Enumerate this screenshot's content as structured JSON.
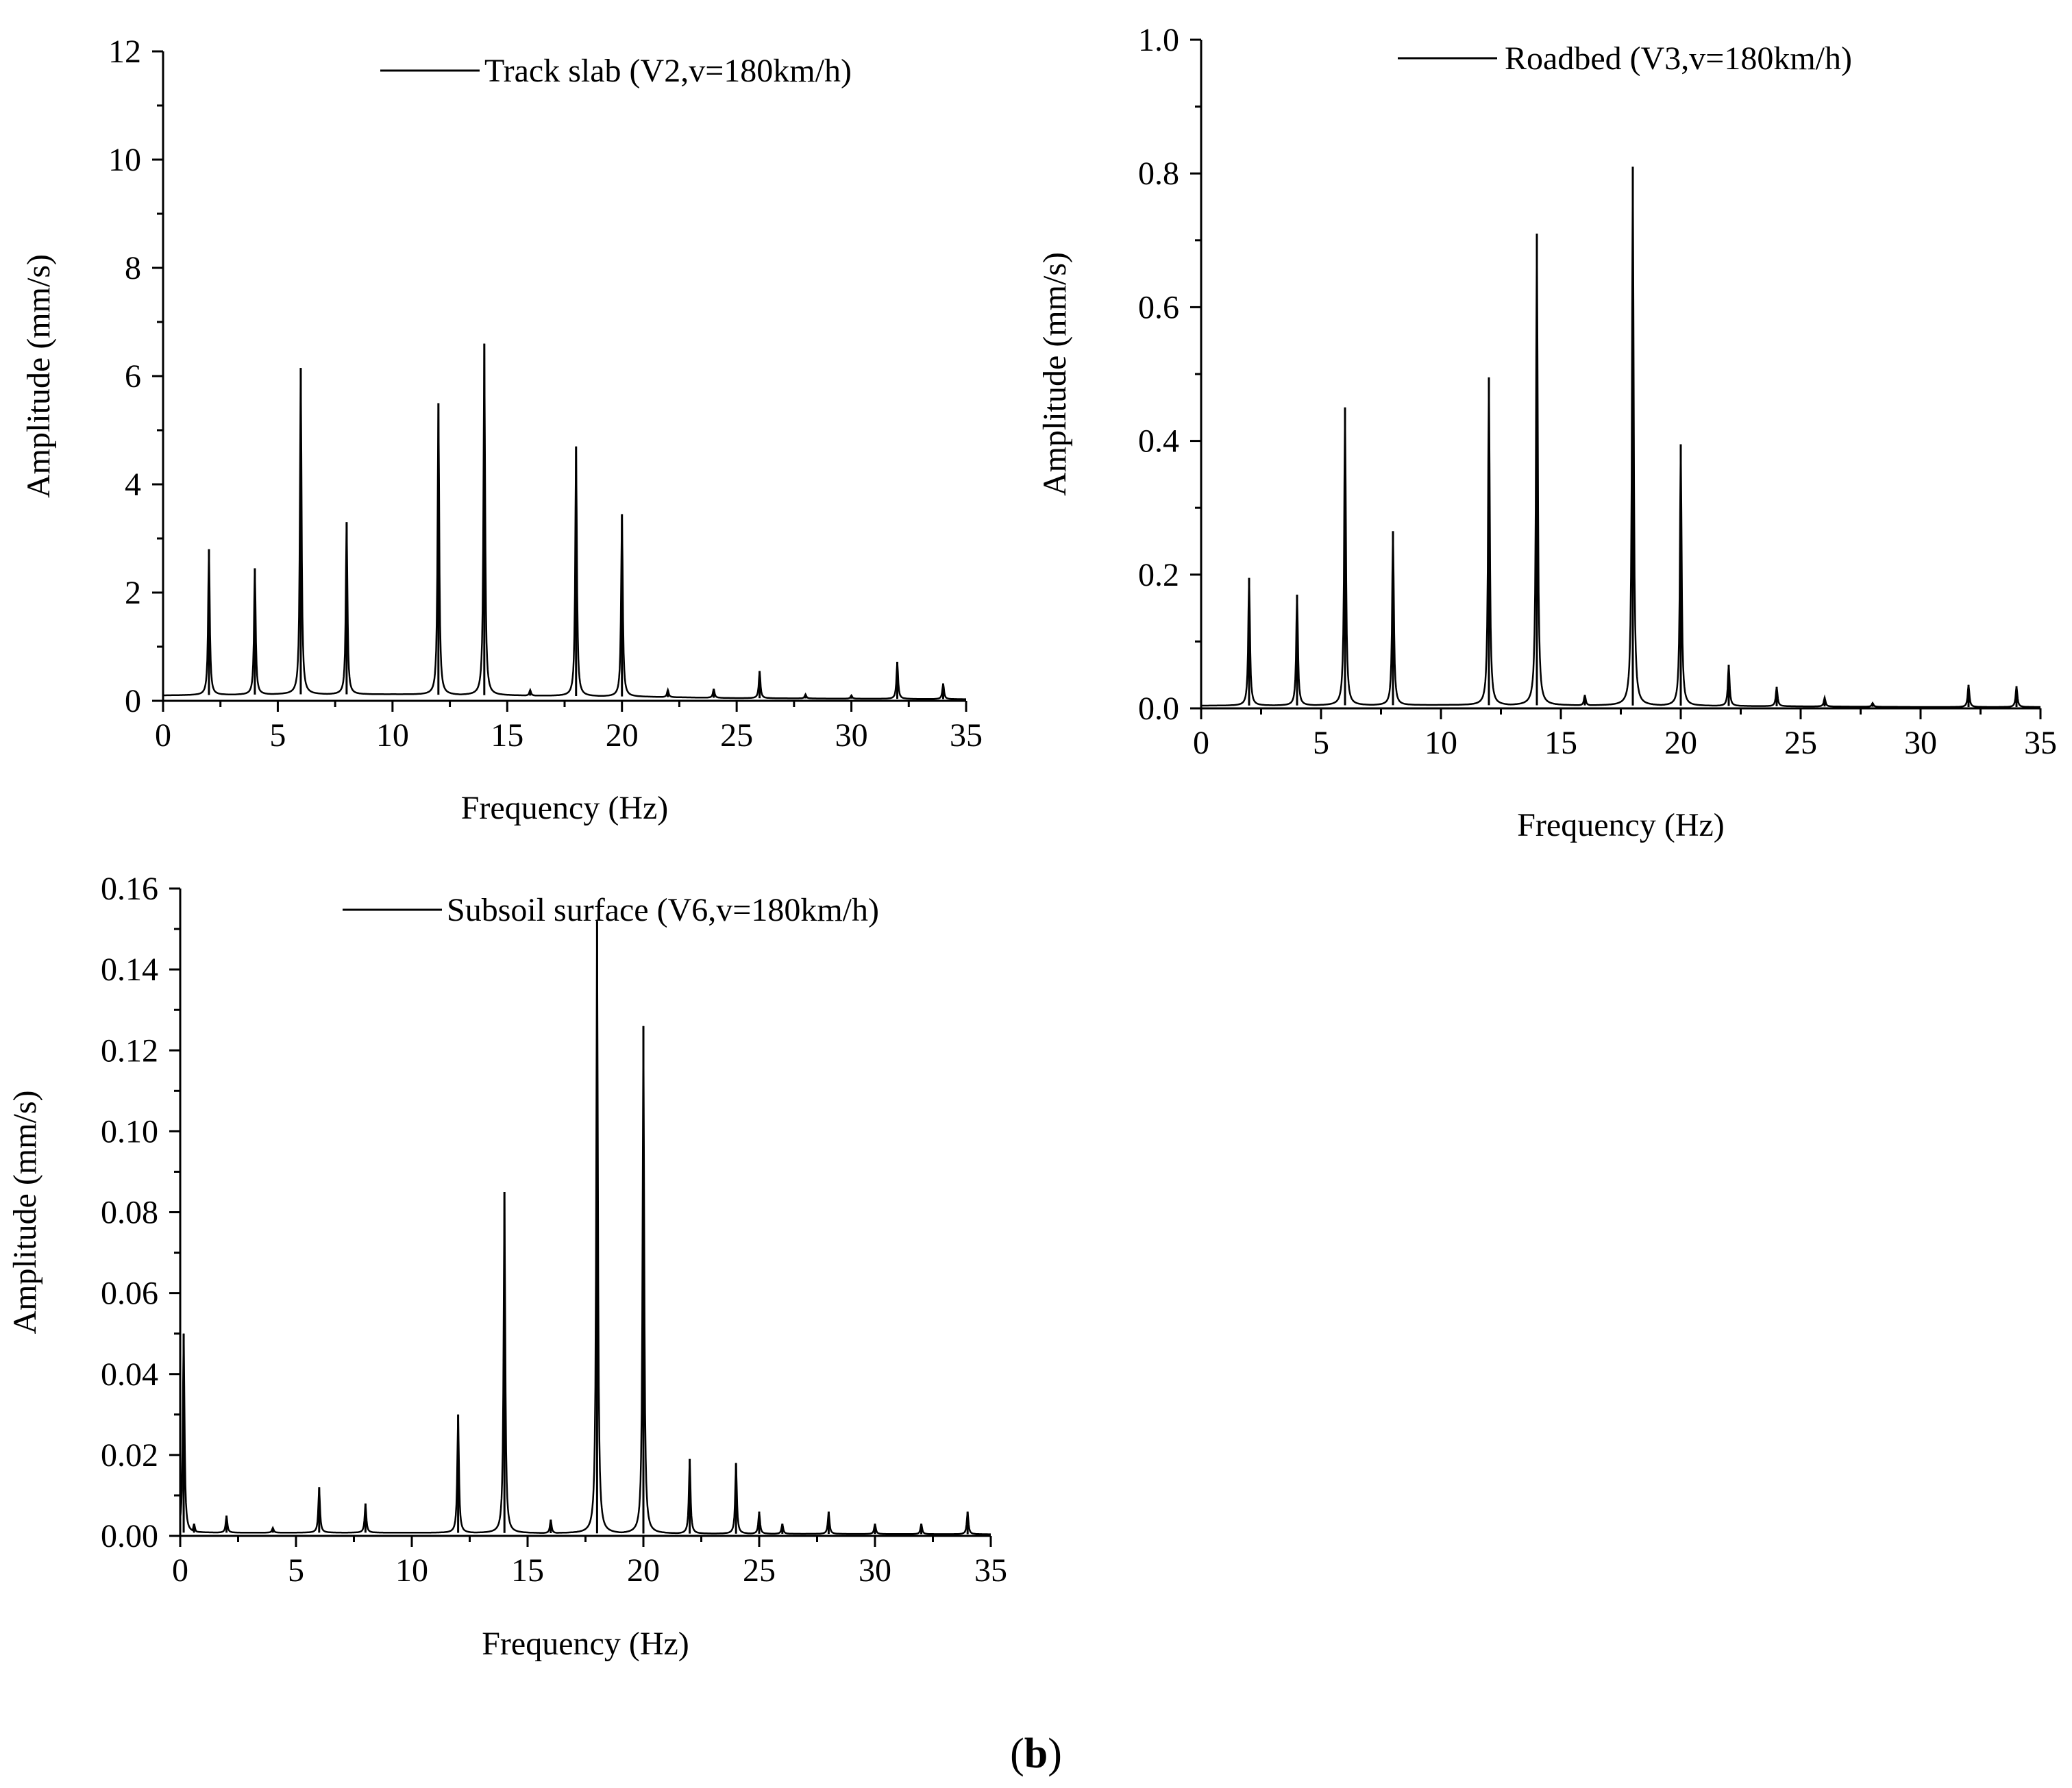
{
  "caption": {
    "open": "(",
    "label": "b",
    "close": ")"
  },
  "chart_data": [
    {
      "type": "line",
      "id": "track-slab",
      "xlabel": "Frequency (Hz)",
      "ylabel": "Amplitude (mm/s)",
      "xlim": [
        0,
        35
      ],
      "ylim": [
        0,
        12
      ],
      "xticks": [
        0,
        5,
        10,
        15,
        20,
        25,
        30,
        35
      ],
      "yticks": [
        0,
        2,
        4,
        6,
        8,
        10,
        12
      ],
      "ytick_labels": [
        "0",
        "2",
        "4",
        "6",
        "8",
        "10",
        "12"
      ],
      "grid": false,
      "legend_position": "top-right",
      "series": [
        {
          "name": "Track slab (V2,v=180km/h)",
          "color": "#000000",
          "baseline": [
            [
              0,
              0.1
            ],
            [
              5,
              0.12
            ],
            [
              10,
              0.12
            ],
            [
              15,
              0.1
            ],
            [
              20,
              0.08
            ],
            [
              25,
              0.05
            ],
            [
              30,
              0.04
            ],
            [
              35,
              0.03
            ]
          ],
          "peaks": [
            {
              "x": 2,
              "y": 2.8
            },
            {
              "x": 4,
              "y": 2.45
            },
            {
              "x": 6,
              "y": 6.15
            },
            {
              "x": 8,
              "y": 3.3
            },
            {
              "x": 12,
              "y": 5.5
            },
            {
              "x": 14,
              "y": 6.6
            },
            {
              "x": 16,
              "y": 0.2
            },
            {
              "x": 18,
              "y": 4.7
            },
            {
              "x": 20,
              "y": 3.45
            },
            {
              "x": 22,
              "y": 0.2
            },
            {
              "x": 24,
              "y": 0.22
            },
            {
              "x": 26,
              "y": 0.55
            },
            {
              "x": 28,
              "y": 0.12
            },
            {
              "x": 30,
              "y": 0.1
            },
            {
              "x": 32,
              "y": 0.72
            },
            {
              "x": 34,
              "y": 0.32
            }
          ]
        }
      ]
    },
    {
      "type": "line",
      "id": "roadbed",
      "xlabel": "Frequency (Hz)",
      "ylabel": "Amplitude (mm/s)",
      "xlim": [
        0,
        35
      ],
      "ylim": [
        0,
        1.0
      ],
      "xticks": [
        0,
        5,
        10,
        15,
        20,
        25,
        30,
        35
      ],
      "yticks": [
        0,
        0.2,
        0.4,
        0.6,
        0.8,
        1.0
      ],
      "ytick_labels": [
        "0.0",
        "0.2",
        "0.4",
        "0.6",
        "0.8",
        "1.0"
      ],
      "grid": false,
      "legend_position": "top-right",
      "series": [
        {
          "name": "Roadbed (V3,v=180km/h)",
          "color": "#000000",
          "baseline": [
            [
              0,
              0.004
            ],
            [
              10,
              0.005
            ],
            [
              20,
              0.004
            ],
            [
              30,
              0.002
            ],
            [
              35,
              0.002
            ]
          ],
          "peaks": [
            {
              "x": 2,
              "y": 0.195
            },
            {
              "x": 4,
              "y": 0.17
            },
            {
              "x": 6,
              "y": 0.45
            },
            {
              "x": 8,
              "y": 0.265
            },
            {
              "x": 12,
              "y": 0.495
            },
            {
              "x": 14,
              "y": 0.71
            },
            {
              "x": 16,
              "y": 0.02
            },
            {
              "x": 18,
              "y": 0.81
            },
            {
              "x": 20,
              "y": 0.395
            },
            {
              "x": 22,
              "y": 0.065
            },
            {
              "x": 24,
              "y": 0.032
            },
            {
              "x": 26,
              "y": 0.016
            },
            {
              "x": 28,
              "y": 0.008
            },
            {
              "x": 32,
              "y": 0.035
            },
            {
              "x": 34,
              "y": 0.033
            }
          ]
        }
      ]
    },
    {
      "type": "line",
      "id": "subsoil-surface",
      "xlabel": "Frequency (Hz)",
      "ylabel": "Amplitude (mm/s)",
      "xlim": [
        0,
        35
      ],
      "ylim": [
        0,
        0.16
      ],
      "xticks": [
        0,
        5,
        10,
        15,
        20,
        25,
        30,
        35
      ],
      "yticks": [
        0,
        0.02,
        0.04,
        0.06,
        0.08,
        0.1,
        0.12,
        0.14,
        0.16
      ],
      "ytick_labels": [
        "0.00",
        "0.02",
        "0.04",
        "0.06",
        "0.08",
        "0.10",
        "0.12",
        "0.14",
        "0.16"
      ],
      "grid": false,
      "legend_position": "top-right",
      "series": [
        {
          "name": "Subsoil surface (V6,v=180km/h)",
          "color": "#000000",
          "baseline": [
            [
              0,
              0.0008
            ],
            [
              10,
              0.0008
            ],
            [
              20,
              0.0006
            ],
            [
              35,
              0.0004
            ]
          ],
          "peaks": [
            {
              "x": 0.15,
              "y": 0.05
            },
            {
              "x": 0.6,
              "y": 0.003
            },
            {
              "x": 2,
              "y": 0.005
            },
            {
              "x": 4,
              "y": 0.002
            },
            {
              "x": 6,
              "y": 0.012
            },
            {
              "x": 8,
              "y": 0.008
            },
            {
              "x": 12,
              "y": 0.03
            },
            {
              "x": 14,
              "y": 0.085
            },
            {
              "x": 16,
              "y": 0.004
            },
            {
              "x": 18,
              "y": 0.152
            },
            {
              "x": 20,
              "y": 0.126
            },
            {
              "x": 22,
              "y": 0.019
            },
            {
              "x": 24,
              "y": 0.018
            },
            {
              "x": 25,
              "y": 0.006
            },
            {
              "x": 26,
              "y": 0.003
            },
            {
              "x": 28,
              "y": 0.006
            },
            {
              "x": 30,
              "y": 0.003
            },
            {
              "x": 32,
              "y": 0.003
            },
            {
              "x": 34,
              "y": 0.006
            }
          ]
        }
      ]
    }
  ]
}
